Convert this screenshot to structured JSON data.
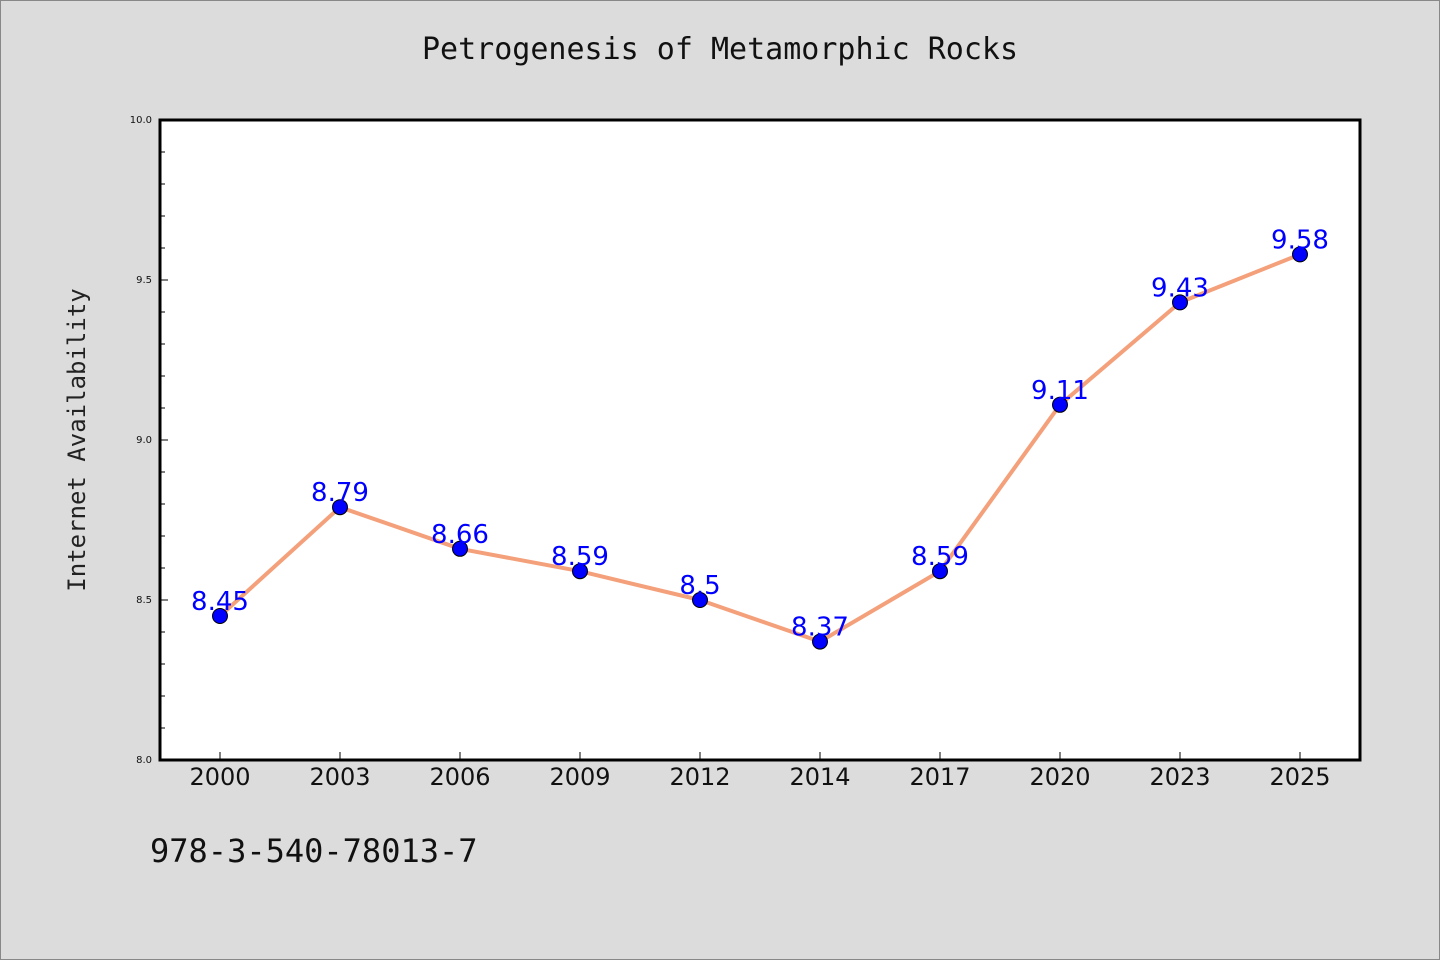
{
  "chart_data": {
    "type": "line",
    "title": "Petrogenesis of Metamorphic Rocks",
    "xlabel": "",
    "ylabel": "Internet Availability",
    "categories": [
      "2000",
      "2003",
      "2006",
      "2009",
      "2012",
      "2014",
      "2017",
      "2020",
      "2023",
      "2025"
    ],
    "series": [
      {
        "values": [
          8.45,
          8.79,
          8.66,
          8.59,
          8.5,
          8.37,
          8.59,
          9.11,
          9.43,
          9.58
        ],
        "line_color": "#f4a07a",
        "marker_color": "#0000ff",
        "label_color": "#0000ff"
      }
    ],
    "data_labels": [
      "8.45",
      "8.79",
      "8.66",
      "8.59",
      "8.5",
      "8.37",
      "8.59",
      "9.11",
      "9.43",
      "9.58"
    ],
    "ylim": [
      8.0,
      10.0
    ],
    "yticks": [
      "8.0",
      "8.5",
      "9.0",
      "9.5",
      "10.0"
    ],
    "grid": false,
    "background": "#dcdcdc",
    "plot_background": "#ffffff"
  },
  "footnote": "978-3-540-78013-7"
}
